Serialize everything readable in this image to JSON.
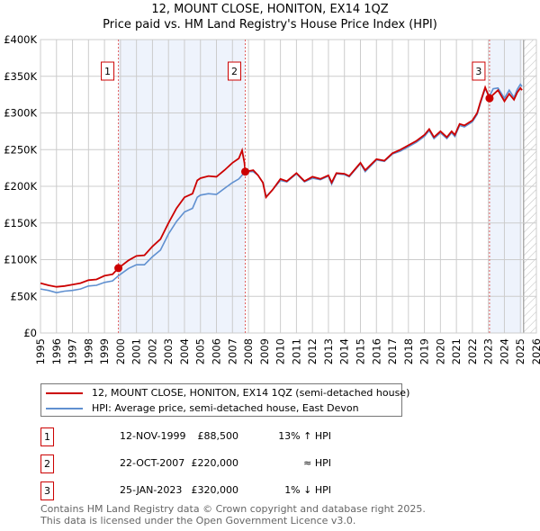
{
  "title": "12, MOUNT CLOSE, HONITON, EX14 1QZ",
  "subtitle": "Price paid vs. HM Land Registry's House Price Index (HPI)",
  "chart_data": {
    "type": "line",
    "title": "12, MOUNT CLOSE, HONITON, EX14 1QZ",
    "subtitle": "Price paid vs. HM Land Registry's House Price Index (HPI)",
    "xlim": [
      1995,
      2026
    ],
    "ylim": [
      0,
      400000
    ],
    "x_ticks": [
      "1995",
      "1996",
      "1997",
      "1998",
      "1999",
      "2000",
      "2001",
      "2002",
      "2003",
      "2004",
      "2005",
      "2006",
      "2007",
      "2008",
      "2009",
      "2010",
      "2011",
      "2012",
      "2013",
      "2014",
      "2015",
      "2016",
      "2017",
      "2018",
      "2019",
      "2020",
      "2021",
      "2022",
      "2023",
      "2024",
      "2025",
      "2026"
    ],
    "y_ticks": [
      {
        "v": 0,
        "label": "£0"
      },
      {
        "v": 50000,
        "label": "£50K"
      },
      {
        "v": 100000,
        "label": "£100K"
      },
      {
        "v": 150000,
        "label": "£150K"
      },
      {
        "v": 200000,
        "label": "£200K"
      },
      {
        "v": 250000,
        "label": "£250K"
      },
      {
        "v": 300000,
        "label": "£300K"
      },
      {
        "v": 350000,
        "label": "£350K"
      },
      {
        "v": 400000,
        "label": "£400K"
      }
    ],
    "grid": true,
    "shaded_periods": [
      [
        1999.87,
        2007.8
      ],
      [
        2023.07,
        2025.1
      ]
    ],
    "forecast_hatch_from": 2025.2,
    "series": [
      {
        "name": "12, MOUNT CLOSE, HONITON, EX14 1QZ (semi-detached house)",
        "color": "#cc0000",
        "points": [
          [
            1995,
            68000
          ],
          [
            1995.5,
            65000
          ],
          [
            1996,
            63000
          ],
          [
            1996.5,
            64000
          ],
          [
            1997,
            66000
          ],
          [
            1997.5,
            68000
          ],
          [
            1998,
            72000
          ],
          [
            1998.5,
            73000
          ],
          [
            1999,
            78000
          ],
          [
            1999.5,
            80000
          ],
          [
            1999.87,
            88500
          ],
          [
            2000.5,
            99000
          ],
          [
            2001,
            105000
          ],
          [
            2001.5,
            106000
          ],
          [
            2002,
            118000
          ],
          [
            2002.5,
            128000
          ],
          [
            2003,
            150000
          ],
          [
            2003.5,
            170000
          ],
          [
            2004,
            185000
          ],
          [
            2004.5,
            190000
          ],
          [
            2004.8,
            208000
          ],
          [
            2005,
            211000
          ],
          [
            2005.5,
            214000
          ],
          [
            2006,
            213000
          ],
          [
            2006.5,
            222000
          ],
          [
            2007,
            232000
          ],
          [
            2007.4,
            238000
          ],
          [
            2007.6,
            249000
          ],
          [
            2007.75,
            232000
          ],
          [
            2007.8,
            220000
          ],
          [
            2008.3,
            222000
          ],
          [
            2008.6,
            215000
          ],
          [
            2008.9,
            205000
          ],
          [
            2009.1,
            185000
          ],
          [
            2009.5,
            195000
          ],
          [
            2010,
            210000
          ],
          [
            2010.4,
            207000
          ],
          [
            2011,
            218000
          ],
          [
            2011.5,
            207000
          ],
          [
            2012,
            213000
          ],
          [
            2012.5,
            210000
          ],
          [
            2013,
            215000
          ],
          [
            2013.2,
            205000
          ],
          [
            2013.5,
            218000
          ],
          [
            2014,
            217000
          ],
          [
            2014.3,
            214000
          ],
          [
            2015,
            232000
          ],
          [
            2015.3,
            222000
          ],
          [
            2016,
            237000
          ],
          [
            2016.5,
            235000
          ],
          [
            2017,
            245000
          ],
          [
            2017.5,
            250000
          ],
          [
            2018,
            256000
          ],
          [
            2018.5,
            262000
          ],
          [
            2019,
            270000
          ],
          [
            2019.3,
            278000
          ],
          [
            2019.6,
            267000
          ],
          [
            2020,
            275000
          ],
          [
            2020.4,
            267000
          ],
          [
            2020.7,
            275000
          ],
          [
            2020.9,
            270000
          ],
          [
            2021.2,
            285000
          ],
          [
            2021.5,
            283000
          ],
          [
            2022,
            290000
          ],
          [
            2022.3,
            300000
          ],
          [
            2022.5,
            315000
          ],
          [
            2022.8,
            335000
          ],
          [
            2023.07,
            320000
          ],
          [
            2023.3,
            325000
          ],
          [
            2023.6,
            331000
          ],
          [
            2024,
            316000
          ],
          [
            2024.3,
            326000
          ],
          [
            2024.6,
            318000
          ],
          [
            2024.8,
            328000
          ],
          [
            2025,
            334000
          ],
          [
            2025.1,
            331000
          ]
        ]
      },
      {
        "name": "HPI: Average price, semi-detached house, East Devon",
        "color": "#6090d0",
        "points": [
          [
            1995,
            60000
          ],
          [
            1995.5,
            58000
          ],
          [
            1996,
            55000
          ],
          [
            1996.5,
            57000
          ],
          [
            1997,
            58000
          ],
          [
            1997.5,
            60000
          ],
          [
            1998,
            64000
          ],
          [
            1998.5,
            65000
          ],
          [
            1999,
            69000
          ],
          [
            1999.5,
            71000
          ],
          [
            1999.87,
            78000
          ],
          [
            2000.5,
            88000
          ],
          [
            2001,
            93000
          ],
          [
            2001.5,
            93000
          ],
          [
            2002,
            104000
          ],
          [
            2002.5,
            113000
          ],
          [
            2003,
            135000
          ],
          [
            2003.5,
            152000
          ],
          [
            2004,
            165000
          ],
          [
            2004.5,
            170000
          ],
          [
            2004.8,
            185000
          ],
          [
            2005,
            188000
          ],
          [
            2005.5,
            190000
          ],
          [
            2006,
            189000
          ],
          [
            2006.5,
            197000
          ],
          [
            2007,
            205000
          ],
          [
            2007.4,
            210000
          ],
          [
            2007.8,
            220000
          ],
          [
            2008.3,
            220000
          ],
          [
            2008.6,
            215000
          ],
          [
            2008.9,
            205000
          ],
          [
            2009.1,
            186000
          ],
          [
            2009.5,
            195000
          ],
          [
            2010,
            208000
          ],
          [
            2010.4,
            206000
          ],
          [
            2011,
            217000
          ],
          [
            2011.5,
            206000
          ],
          [
            2012,
            211000
          ],
          [
            2012.5,
            209000
          ],
          [
            2013,
            214000
          ],
          [
            2013.2,
            203000
          ],
          [
            2013.5,
            217000
          ],
          [
            2014,
            216000
          ],
          [
            2014.3,
            213000
          ],
          [
            2015,
            231000
          ],
          [
            2015.3,
            220000
          ],
          [
            2016,
            236000
          ],
          [
            2016.5,
            234000
          ],
          [
            2017,
            244000
          ],
          [
            2017.5,
            248000
          ],
          [
            2018,
            254000
          ],
          [
            2018.5,
            260000
          ],
          [
            2019,
            268000
          ],
          [
            2019.3,
            276000
          ],
          [
            2019.6,
            265000
          ],
          [
            2020,
            273000
          ],
          [
            2020.4,
            265000
          ],
          [
            2020.7,
            273000
          ],
          [
            2020.9,
            268000
          ],
          [
            2021.2,
            283000
          ],
          [
            2021.5,
            281000
          ],
          [
            2022,
            288000
          ],
          [
            2022.3,
            298000
          ],
          [
            2022.5,
            313000
          ],
          [
            2022.8,
            333000
          ],
          [
            2023.07,
            323000
          ],
          [
            2023.3,
            333000
          ],
          [
            2023.6,
            334000
          ],
          [
            2024,
            320000
          ],
          [
            2024.3,
            331000
          ],
          [
            2024.6,
            321000
          ],
          [
            2024.8,
            332000
          ],
          [
            2025,
            339000
          ],
          [
            2025.1,
            336000
          ]
        ]
      }
    ],
    "sales": [
      {
        "label": "1",
        "x": 1999.87,
        "y": 88500
      },
      {
        "label": "2",
        "x": 2007.8,
        "y": 220000
      },
      {
        "label": "3",
        "x": 2023.07,
        "y": 320000
      }
    ],
    "legend_position": "below"
  },
  "legend": [
    {
      "label": "12, MOUNT CLOSE, HONITON, EX14 1QZ (semi-detached house)",
      "color": "#cc0000"
    },
    {
      "label": "HPI: Average price, semi-detached house, East Devon",
      "color": "#6090d0"
    }
  ],
  "transactions": [
    {
      "num": "1",
      "date": "12-NOV-1999",
      "price": "£88,500",
      "hpi": "13% ↑ HPI"
    },
    {
      "num": "2",
      "date": "22-OCT-2007",
      "price": "£220,000",
      "hpi": "≈ HPI"
    },
    {
      "num": "3",
      "date": "25-JAN-2023",
      "price": "£320,000",
      "hpi": "1% ↓ HPI"
    }
  ],
  "footer": {
    "line1": "Contains HM Land Registry data © Crown copyright and database right 2025.",
    "line2": "This data is licensed under the Open Government Licence v3.0."
  }
}
